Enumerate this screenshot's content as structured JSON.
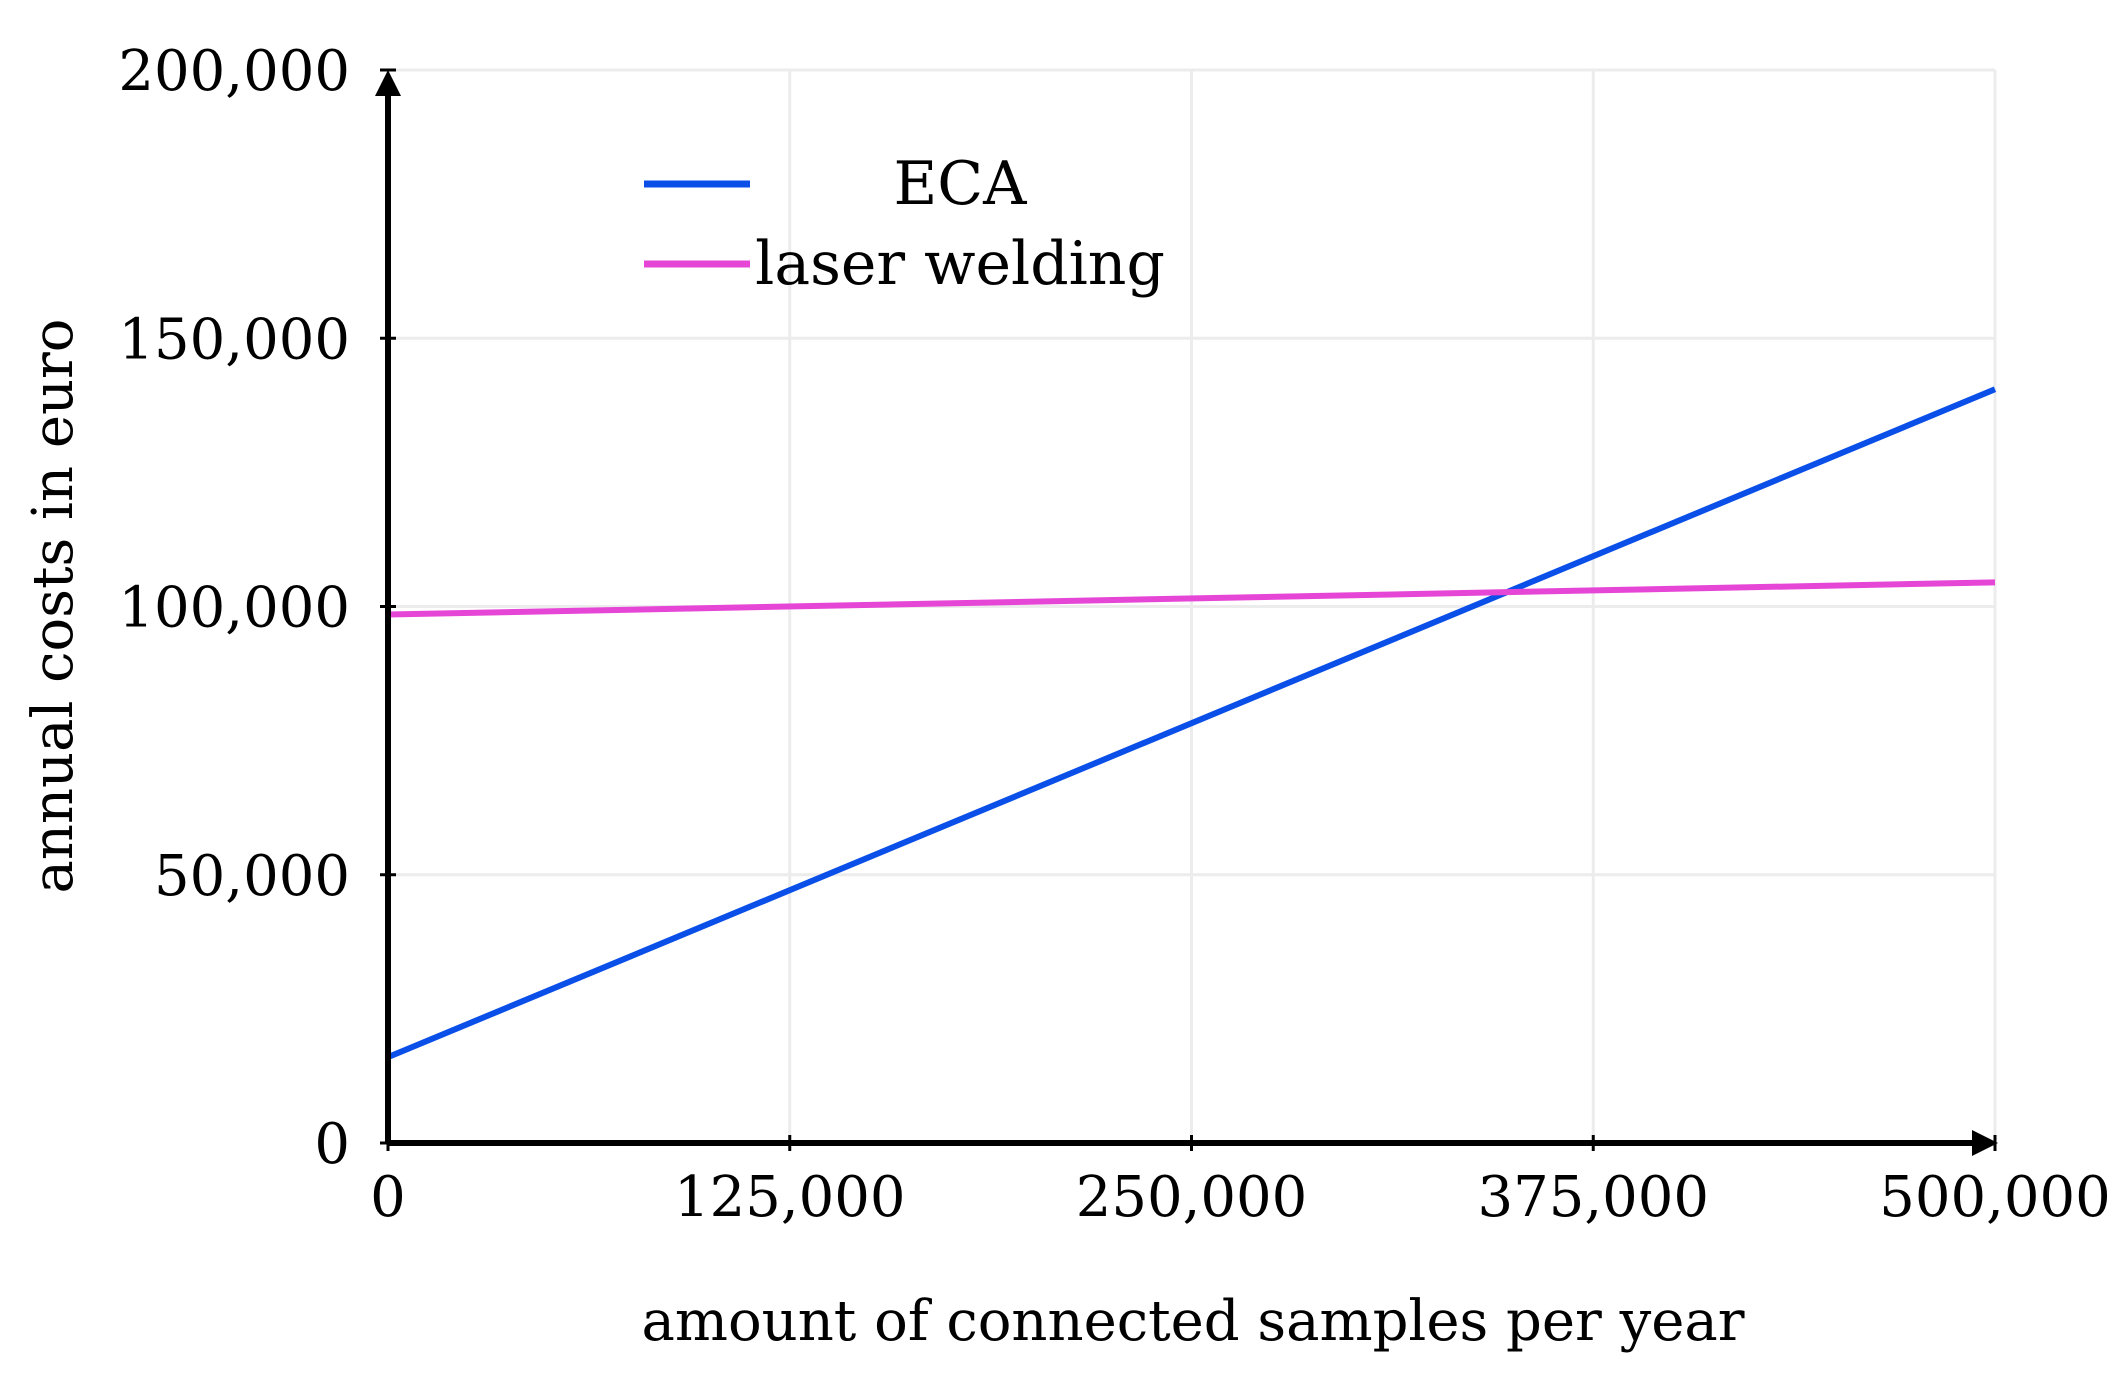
{
  "chart_data": {
    "type": "line",
    "title": "",
    "xlabel": "amount of connected samples per year",
    "ylabel": "annual costs in euro",
    "xlim": [
      0,
      500000
    ],
    "ylim": [
      0,
      200000
    ],
    "grid": true,
    "legend_position": "top-left",
    "xticks": [
      {
        "value": 0,
        "label": "0"
      },
      {
        "value": 125000,
        "label": "125,000"
      },
      {
        "value": 250000,
        "label": "250,000"
      },
      {
        "value": 375000,
        "label": "375,000"
      },
      {
        "value": 500000,
        "label": "500,000"
      }
    ],
    "yticks": [
      {
        "value": 0,
        "label": "0"
      },
      {
        "value": 50000,
        "label": "50,000"
      },
      {
        "value": 100000,
        "label": "100,000"
      },
      {
        "value": 150000,
        "label": "150,000"
      },
      {
        "value": 200000,
        "label": "200,000"
      }
    ],
    "series": [
      {
        "name": "ECA",
        "color": "#0a4fe8",
        "x": [
          0,
          500000
        ],
        "y": [
          16000,
          140500
        ]
      },
      {
        "name": "laser welding",
        "color": "#e646d6",
        "x": [
          0,
          500000
        ],
        "y": [
          98500,
          104500
        ]
      }
    ]
  }
}
